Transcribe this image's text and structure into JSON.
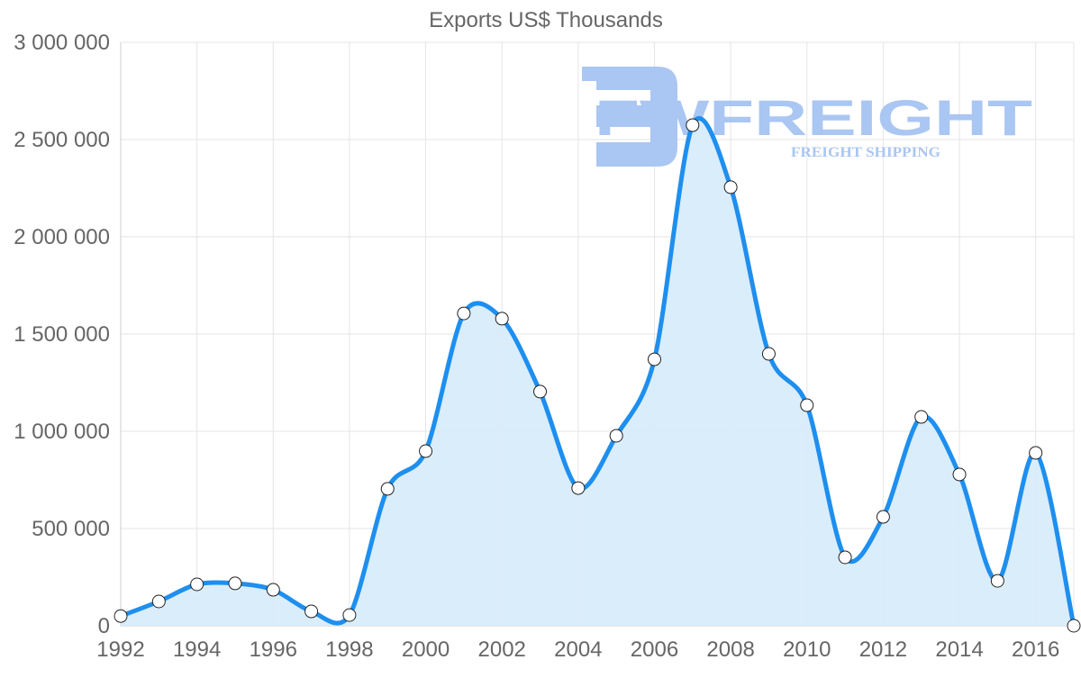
{
  "chart_data": {
    "type": "area",
    "title": "Exports US$ Thousands",
    "xlabel": "",
    "ylabel": "",
    "x": [
      1992,
      1993,
      1994,
      1995,
      1996,
      1997,
      1998,
      1999,
      2000,
      2001,
      2002,
      2003,
      2004,
      2005,
      2006,
      2007,
      2008,
      2009,
      2010,
      2011,
      2012,
      2013,
      2014,
      2015,
      2016,
      2017
    ],
    "series": [
      {
        "name": "Exports US$ Thousands",
        "values": [
          50000,
          125000,
          213000,
          218000,
          185000,
          74000,
          55000,
          704000,
          898000,
          1606000,
          1579000,
          1204000,
          708000,
          977000,
          1370000,
          2574000,
          2255000,
          1398000,
          1134000,
          352000,
          560000,
          1074000,
          778000,
          231000,
          889000,
          0
        ],
        "color": "#1e8fef",
        "fill": "#d6ebfb"
      }
    ],
    "ylim": [
      0,
      3000000
    ],
    "yticks": [
      0,
      500000,
      1000000,
      1500000,
      2000000,
      2500000,
      3000000
    ],
    "ytick_labels": [
      "0",
      "500 000",
      "1 000 000",
      "1 500 000",
      "2 000 000",
      "2 500 000",
      "3 000 000"
    ],
    "xtick_labels": [
      "1992",
      "1994",
      "1996",
      "1998",
      "2000",
      "2002",
      "2004",
      "2006",
      "2008",
      "2010",
      "2012",
      "2014",
      "2016"
    ],
    "grid": true,
    "legend": "none"
  },
  "watermark": {
    "brand": "FWFREIGHT",
    "tagline": "FREIGHT SHIPPING",
    "color": "#aac6f2"
  }
}
